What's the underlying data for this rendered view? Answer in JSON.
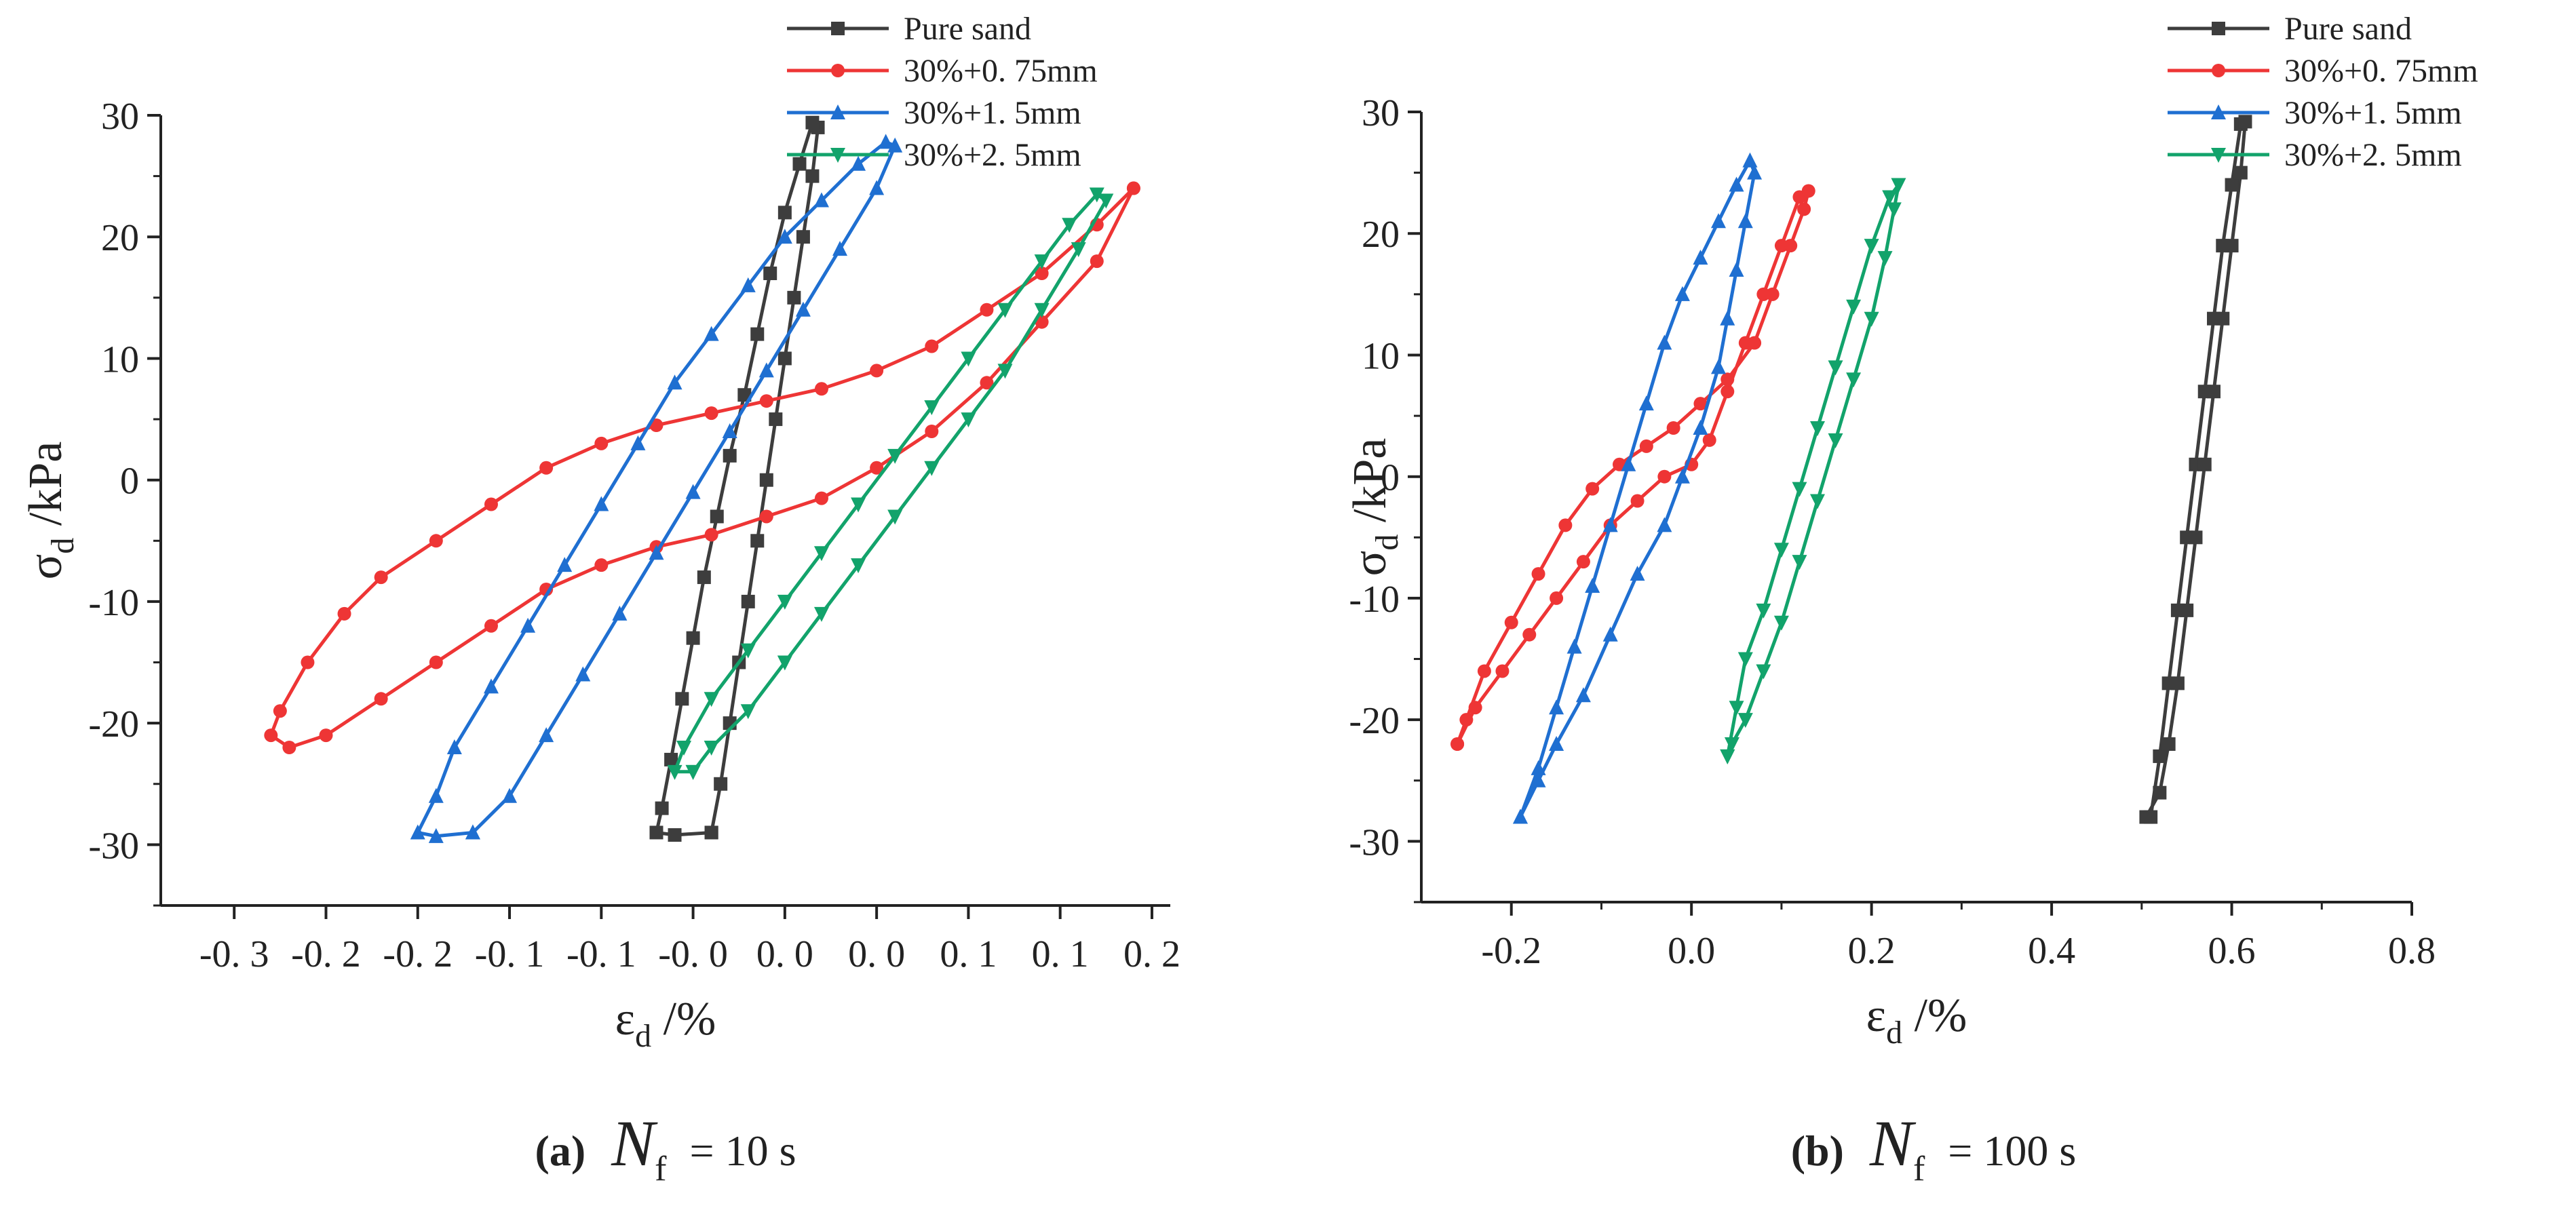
{
  "chart_data": [
    {
      "id": "a",
      "type": "line",
      "xlabel": "ε",
      "xlabel_sub": "d",
      "xlabel_unit": " /%",
      "ylabel": "σ",
      "ylabel_sub": "d",
      "ylabel_unit": " /kPa",
      "xlim": [
        -0.34,
        0.21
      ],
      "ylim": [
        -35,
        30
      ],
      "xticks": [
        -0.3,
        -0.25,
        -0.2,
        -0.15,
        -0.1,
        -0.05,
        0.0,
        0.05,
        0.1,
        0.15,
        0.2
      ],
      "xtick_labels": [
        "-0. 3",
        "-0. 2",
        "-0. 2",
        "-0. 1",
        "-0. 1",
        "-0. 0",
        "0. 0",
        "0. 0",
        "0. 1",
        "0. 1",
        "0. 2"
      ],
      "yticks": [
        -30,
        -20,
        -10,
        0,
        10,
        20,
        30
      ],
      "ytick_labels": [
        "-30",
        "-20",
        "-10",
        "0",
        "10",
        "20",
        "30"
      ],
      "legend": "top-right",
      "caption": {
        "label": "(a)",
        "symbol": "N",
        "sub": "f",
        "value": " = 10 s"
      },
      "series": [
        {
          "name": "Pure sand",
          "color": "#3d3d3d",
          "marker": "square",
          "points": [
            [
              -0.04,
              -29
            ],
            [
              -0.035,
              -25
            ],
            [
              -0.03,
              -20
            ],
            [
              -0.025,
              -15
            ],
            [
              -0.02,
              -10
            ],
            [
              -0.015,
              -5
            ],
            [
              -0.01,
              0
            ],
            [
              -0.005,
              5
            ],
            [
              0.0,
              10
            ],
            [
              0.005,
              15
            ],
            [
              0.01,
              20
            ],
            [
              0.015,
              25
            ],
            [
              0.018,
              29
            ],
            [
              0.015,
              29.4
            ],
            [
              0.008,
              26
            ],
            [
              0.0,
              22
            ],
            [
              -0.008,
              17
            ],
            [
              -0.015,
              12
            ],
            [
              -0.022,
              7
            ],
            [
              -0.03,
              2
            ],
            [
              -0.037,
              -3
            ],
            [
              -0.044,
              -8
            ],
            [
              -0.05,
              -13
            ],
            [
              -0.056,
              -18
            ],
            [
              -0.062,
              -23
            ],
            [
              -0.067,
              -27
            ],
            [
              -0.07,
              -29
            ],
            [
              -0.06,
              -29.2
            ],
            [
              -0.04,
              -29
            ]
          ]
        },
        {
          "name": "30%+0. 75mm",
          "color": "#ee3535",
          "marker": "circle",
          "points": [
            [
              0.19,
              24
            ],
            [
              0.17,
              18
            ],
            [
              0.14,
              13
            ],
            [
              0.11,
              8
            ],
            [
              0.08,
              4
            ],
            [
              0.05,
              1
            ],
            [
              0.02,
              -1.5
            ],
            [
              -0.01,
              -3
            ],
            [
              -0.04,
              -4.5
            ],
            [
              -0.07,
              -5.5
            ],
            [
              -0.1,
              -7
            ],
            [
              -0.13,
              -9
            ],
            [
              -0.16,
              -12
            ],
            [
              -0.19,
              -15
            ],
            [
              -0.22,
              -18
            ],
            [
              -0.25,
              -21
            ],
            [
              -0.27,
              -22
            ],
            [
              -0.28,
              -21
            ],
            [
              -0.275,
              -19
            ],
            [
              -0.26,
              -15
            ],
            [
              -0.24,
              -11
            ],
            [
              -0.22,
              -8
            ],
            [
              -0.19,
              -5
            ],
            [
              -0.16,
              -2
            ],
            [
              -0.13,
              1
            ],
            [
              -0.1,
              3
            ],
            [
              -0.07,
              4.5
            ],
            [
              -0.04,
              5.5
            ],
            [
              -0.01,
              6.5
            ],
            [
              0.02,
              7.5
            ],
            [
              0.05,
              9
            ],
            [
              0.08,
              11
            ],
            [
              0.11,
              14
            ],
            [
              0.14,
              17
            ],
            [
              0.17,
              21
            ],
            [
              0.19,
              24
            ]
          ]
        },
        {
          "name": "30%+1. 5mm",
          "color": "#1f6fd1",
          "marker": "triangle-up",
          "points": [
            [
              -0.17,
              -29
            ],
            [
              -0.15,
              -26
            ],
            [
              -0.13,
              -21
            ],
            [
              -0.11,
              -16
            ],
            [
              -0.09,
              -11
            ],
            [
              -0.07,
              -6
            ],
            [
              -0.05,
              -1
            ],
            [
              -0.03,
              4
            ],
            [
              -0.01,
              9
            ],
            [
              0.01,
              14
            ],
            [
              0.03,
              19
            ],
            [
              0.05,
              24
            ],
            [
              0.06,
              27.5
            ],
            [
              0.055,
              27.8
            ],
            [
              0.04,
              26
            ],
            [
              0.02,
              23
            ],
            [
              0.0,
              20
            ],
            [
              -0.02,
              16
            ],
            [
              -0.04,
              12
            ],
            [
              -0.06,
              8
            ],
            [
              -0.08,
              3
            ],
            [
              -0.1,
              -2
            ],
            [
              -0.12,
              -7
            ],
            [
              -0.14,
              -12
            ],
            [
              -0.16,
              -17
            ],
            [
              -0.18,
              -22
            ],
            [
              -0.19,
              -26
            ],
            [
              -0.2,
              -29
            ],
            [
              -0.19,
              -29.3
            ],
            [
              -0.17,
              -29
            ]
          ]
        },
        {
          "name": "30%+2. 5mm",
          "color": "#12a36b",
          "marker": "triangle-down",
          "points": [
            [
              -0.05,
              -24
            ],
            [
              -0.04,
              -22
            ],
            [
              -0.02,
              -19
            ],
            [
              0.0,
              -15
            ],
            [
              0.02,
              -11
            ],
            [
              0.04,
              -7
            ],
            [
              0.06,
              -3
            ],
            [
              0.08,
              1
            ],
            [
              0.1,
              5
            ],
            [
              0.12,
              9
            ],
            [
              0.14,
              14
            ],
            [
              0.16,
              19
            ],
            [
              0.175,
              23
            ],
            [
              0.17,
              23.5
            ],
            [
              0.155,
              21
            ],
            [
              0.14,
              18
            ],
            [
              0.12,
              14
            ],
            [
              0.1,
              10
            ],
            [
              0.08,
              6
            ],
            [
              0.06,
              2
            ],
            [
              0.04,
              -2
            ],
            [
              0.02,
              -6
            ],
            [
              0.0,
              -10
            ],
            [
              -0.02,
              -14
            ],
            [
              -0.04,
              -18
            ],
            [
              -0.055,
              -22
            ],
            [
              -0.06,
              -24
            ],
            [
              -0.05,
              -24
            ]
          ]
        }
      ]
    },
    {
      "id": "b",
      "type": "line",
      "xlabel": "ε",
      "xlabel_sub": "d",
      "xlabel_unit": " /%",
      "ylabel": "σ",
      "ylabel_sub": "d",
      "ylabel_unit": " /kPa",
      "xlim": [
        -0.3,
        0.8
      ],
      "ylim": [
        -35,
        30
      ],
      "xticks": [
        -0.2,
        0.0,
        0.2,
        0.4,
        0.6,
        0.8
      ],
      "xtick_labels": [
        "-0.2",
        "0.0",
        "0.2",
        "0.4",
        "0.6",
        "0.8"
      ],
      "yticks": [
        -30,
        -20,
        -10,
        0,
        10,
        20,
        30
      ],
      "ytick_labels": [
        "-30",
        "-20",
        "-10",
        "0",
        "10",
        "20",
        "30"
      ],
      "legend": "top-right",
      "caption": {
        "label": "(b)",
        "symbol": "N",
        "sub": "f",
        "value": " = 100 s"
      },
      "series": [
        {
          "name": "Pure sand",
          "color": "#3d3d3d",
          "marker": "square",
          "points": [
            [
              0.51,
              -28
            ],
            [
              0.52,
              -23
            ],
            [
              0.53,
              -17
            ],
            [
              0.54,
              -11
            ],
            [
              0.55,
              -5
            ],
            [
              0.56,
              1
            ],
            [
              0.57,
              7
            ],
            [
              0.58,
              13
            ],
            [
              0.59,
              19
            ],
            [
              0.6,
              24
            ],
            [
              0.61,
              29
            ],
            [
              0.615,
              29.2
            ],
            [
              0.61,
              25
            ],
            [
              0.6,
              19
            ],
            [
              0.59,
              13
            ],
            [
              0.58,
              7
            ],
            [
              0.57,
              1
            ],
            [
              0.56,
              -5
            ],
            [
              0.55,
              -11
            ],
            [
              0.54,
              -17
            ],
            [
              0.53,
              -22
            ],
            [
              0.52,
              -26
            ],
            [
              0.505,
              -28
            ],
            [
              0.51,
              -28
            ]
          ]
        },
        {
          "name": "30%+0. 75mm",
          "color": "#ee3535",
          "marker": "circle",
          "points": [
            [
              -0.26,
              -22
            ],
            [
              -0.24,
              -19
            ],
            [
              -0.21,
              -16
            ],
            [
              -0.18,
              -13
            ],
            [
              -0.15,
              -10
            ],
            [
              -0.12,
              -7
            ],
            [
              -0.09,
              -4
            ],
            [
              -0.06,
              -2
            ],
            [
              -0.03,
              0
            ],
            [
              0.0,
              1
            ],
            [
              0.02,
              3
            ],
            [
              0.04,
              7
            ],
            [
              0.06,
              11
            ],
            [
              0.08,
              15
            ],
            [
              0.1,
              19
            ],
            [
              0.12,
              23
            ],
            [
              0.13,
              23.5
            ],
            [
              0.125,
              22
            ],
            [
              0.11,
              19
            ],
            [
              0.09,
              15
            ],
            [
              0.07,
              11
            ],
            [
              0.04,
              8
            ],
            [
              0.01,
              6
            ],
            [
              -0.02,
              4
            ],
            [
              -0.05,
              2.5
            ],
            [
              -0.08,
              1
            ],
            [
              -0.11,
              -1
            ],
            [
              -0.14,
              -4
            ],
            [
              -0.17,
              -8
            ],
            [
              -0.2,
              -12
            ],
            [
              -0.23,
              -16
            ],
            [
              -0.25,
              -20
            ],
            [
              -0.26,
              -22
            ]
          ]
        },
        {
          "name": "30%+1. 5mm",
          "color": "#1f6fd1",
          "marker": "triangle-up",
          "points": [
            [
              -0.19,
              -28
            ],
            [
              -0.17,
              -24
            ],
            [
              -0.15,
              -19
            ],
            [
              -0.13,
              -14
            ],
            [
              -0.11,
              -9
            ],
            [
              -0.09,
              -4
            ],
            [
              -0.07,
              1
            ],
            [
              -0.05,
              6
            ],
            [
              -0.03,
              11
            ],
            [
              -0.01,
              15
            ],
            [
              0.01,
              18
            ],
            [
              0.03,
              21
            ],
            [
              0.05,
              24
            ],
            [
              0.065,
              26
            ],
            [
              0.07,
              25
            ],
            [
              0.06,
              21
            ],
            [
              0.05,
              17
            ],
            [
              0.04,
              13
            ],
            [
              0.03,
              9
            ],
            [
              0.01,
              4
            ],
            [
              -0.01,
              0
            ],
            [
              -0.03,
              -4
            ],
            [
              -0.06,
              -8
            ],
            [
              -0.09,
              -13
            ],
            [
              -0.12,
              -18
            ],
            [
              -0.15,
              -22
            ],
            [
              -0.17,
              -25
            ],
            [
              -0.19,
              -28
            ]
          ]
        },
        {
          "name": "30%+2. 5mm",
          "color": "#12a36b",
          "marker": "triangle-down",
          "points": [
            [
              0.04,
              -23
            ],
            [
              0.05,
              -19
            ],
            [
              0.06,
              -15
            ],
            [
              0.08,
              -11
            ],
            [
              0.1,
              -6
            ],
            [
              0.12,
              -1
            ],
            [
              0.14,
              4
            ],
            [
              0.16,
              9
            ],
            [
              0.18,
              14
            ],
            [
              0.2,
              19
            ],
            [
              0.22,
              23
            ],
            [
              0.23,
              24
            ],
            [
              0.225,
              22
            ],
            [
              0.215,
              18
            ],
            [
              0.2,
              13
            ],
            [
              0.18,
              8
            ],
            [
              0.16,
              3
            ],
            [
              0.14,
              -2
            ],
            [
              0.12,
              -7
            ],
            [
              0.1,
              -12
            ],
            [
              0.08,
              -16
            ],
            [
              0.06,
              -20
            ],
            [
              0.045,
              -22
            ],
            [
              0.04,
              -23
            ]
          ]
        }
      ]
    }
  ]
}
